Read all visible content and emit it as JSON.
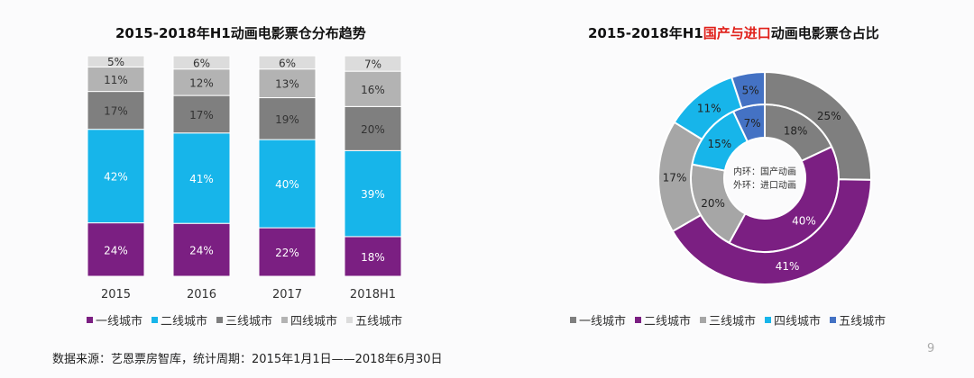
{
  "chart_data": [
    {
      "type": "bar",
      "stacked": true,
      "title": "2015-2018年H1动画电影票仓分布趋势",
      "categories": [
        "2015",
        "2016",
        "2017",
        "2018H1"
      ],
      "series": [
        {
          "name": "一线城市",
          "color": "#7b1f82",
          "values": [
            24,
            24,
            22,
            18
          ]
        },
        {
          "name": "二线城市",
          "color": "#17b5ea",
          "values": [
            42,
            41,
            40,
            39
          ]
        },
        {
          "name": "三线城市",
          "color": "#7f7f7f",
          "values": [
            17,
            17,
            19,
            20
          ]
        },
        {
          "name": "四线城市",
          "color": "#b3b3b3",
          "values": [
            11,
            12,
            13,
            16
          ]
        },
        {
          "name": "五线城市",
          "color": "#dcdcdc",
          "values": [
            5,
            6,
            6,
            7
          ]
        }
      ],
      "unit": "%",
      "legend": "bottom"
    },
    {
      "type": "pie",
      "variant": "double-donut",
      "title_parts": [
        "2015-2018年H1",
        "国产与进口",
        "动画电影票仓占比"
      ],
      "title_highlight_color": "#e0201a",
      "center_labels": [
        "内环：国产动画",
        "外环：进口动画"
      ],
      "categories": [
        "一线城市",
        "二线城市",
        "三线城市",
        "四线城市",
        "五线城市"
      ],
      "colors": [
        "#7f7f7f",
        "#7b1f82",
        "#a6a6a6",
        "#17b5ea",
        "#4472c4"
      ],
      "series": [
        {
          "name": "内环：国产动画",
          "ring": "inner",
          "values": [
            18,
            40,
            20,
            15,
            7
          ]
        },
        {
          "name": "外环：进口动画",
          "ring": "outer",
          "values": [
            25,
            41,
            17,
            11,
            5
          ]
        }
      ],
      "unit": "%",
      "legend": "bottom"
    }
  ],
  "footer": {
    "source": "数据来源：艺恩票房智库，统计周期：2015年1月1日——2018年6月30日",
    "page_number": "9"
  }
}
